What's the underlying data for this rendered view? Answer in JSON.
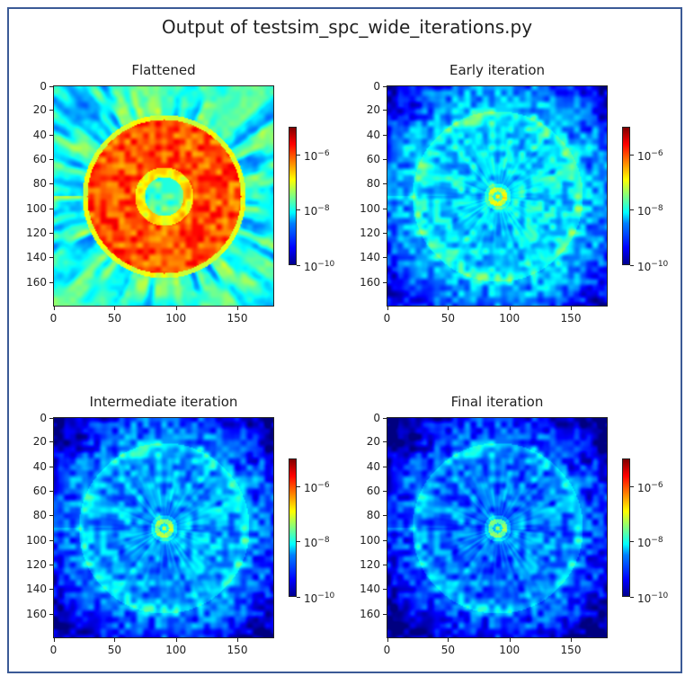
{
  "figure_title": "Output of testsim_spc_wide_iterations.py",
  "chart_data": {
    "type": "heatmap",
    "title": "Output of testsim_spc_wide_iterations.py",
    "colormap": "jet",
    "colorbar_scale": "log",
    "colorbar_range": [
      1e-10,
      1e-05
    ],
    "colorbar_ticks": [
      {
        "base": "10",
        "exp": "−6"
      },
      {
        "base": "10",
        "exp": "−8"
      },
      {
        "base": "10",
        "exp": "−10"
      }
    ],
    "x_ticks": [
      "0",
      "50",
      "100",
      "150"
    ],
    "y_ticks": [
      "0",
      "20",
      "40",
      "60",
      "80",
      "100",
      "120",
      "140",
      "160"
    ],
    "xlim": [
      0,
      180
    ],
    "ylim": [
      180,
      0
    ],
    "panels": [
      {
        "title": "Flattened",
        "bright_ring_log": -6.0,
        "background_log": -8.0
      },
      {
        "title": "Early iteration",
        "bright_ring_log": -8.0,
        "background_log": -8.6
      },
      {
        "title": "Intermediate iteration",
        "bright_ring_log": -8.0,
        "background_log": -8.8
      },
      {
        "title": "Final iteration",
        "bright_ring_log": -8.1,
        "background_log": -8.9
      }
    ]
  }
}
